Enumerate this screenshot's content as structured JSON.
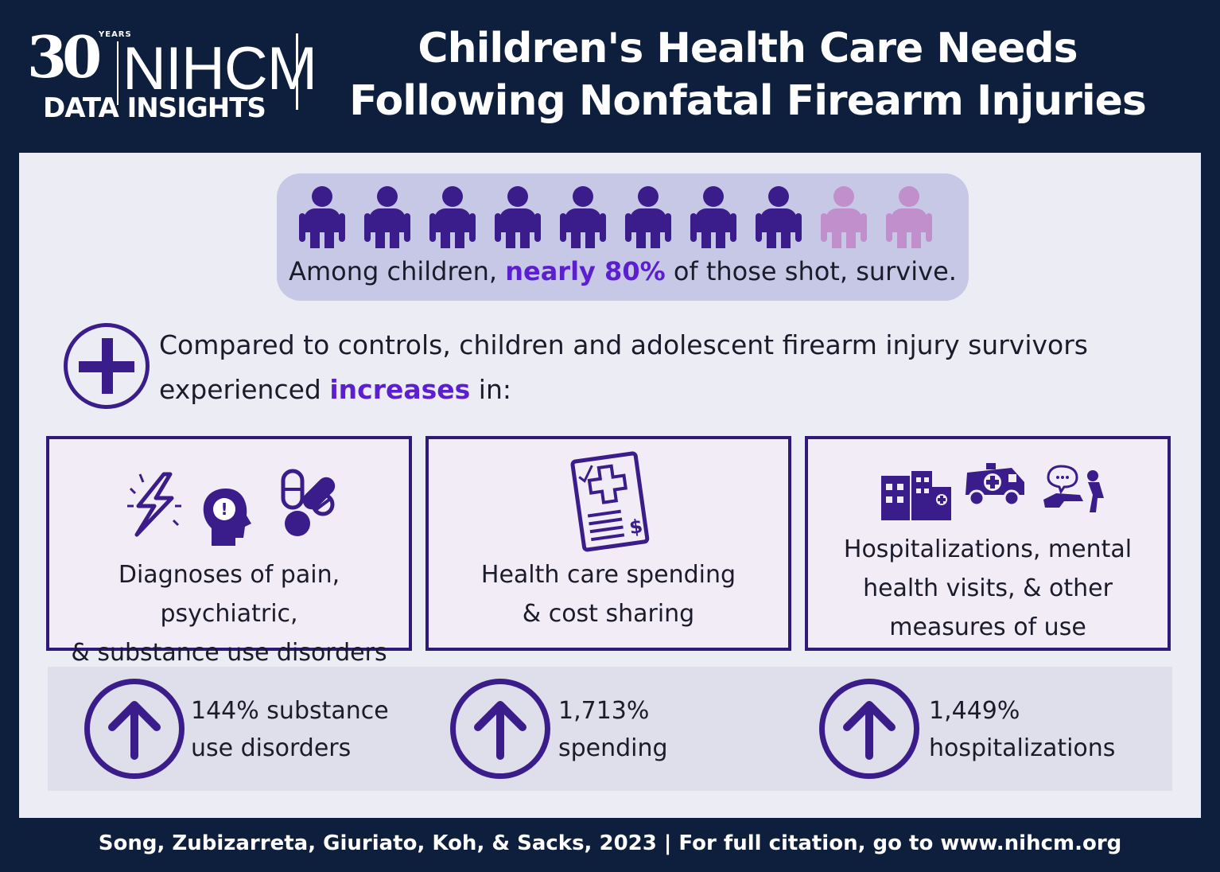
{
  "logo": {
    "number": "30",
    "years": "YEARS",
    "org": "NIHCM",
    "subtitle": "DATA INSIGHTS"
  },
  "title": {
    "line1": "Children's Health Care Needs",
    "line2": "Following Nonfatal Firearm Injuries"
  },
  "survival": {
    "survived_icons": 8,
    "total_icons": 10,
    "text_before": "Among children, ",
    "highlight": "nearly 80%",
    "text_after": " of those shot, survive."
  },
  "compared": {
    "text_before": "Compared to controls, children and adolescent firearm injury survivors experienced ",
    "highlight": "increases",
    "text_after": " in:"
  },
  "cards": [
    {
      "line1": "Diagnoses of pain, psychiatric,",
      "line2": "& substance use disorders"
    },
    {
      "line1": "Health care spending",
      "line2": "& cost sharing"
    },
    {
      "line1": "Hospitalizations, mental",
      "line2": "health visits, & other",
      "line3": "measures of use"
    }
  ],
  "stats": [
    {
      "line1": "144% substance",
      "line2": "use disorders"
    },
    {
      "line1": "1,713%",
      "line2": "spending"
    },
    {
      "line1": "1,449%",
      "line2": "hospitalizations"
    }
  ],
  "footer": "Song, Zubizarreta, Giuriato, Koh, & Sacks, 2023 | For full citation, go to www.nihcm.org",
  "colors": {
    "navy": "#0d1f3c",
    "purple": "#3a1d8a",
    "highlight": "#5b1fd0",
    "light_person": "#c190cc"
  }
}
